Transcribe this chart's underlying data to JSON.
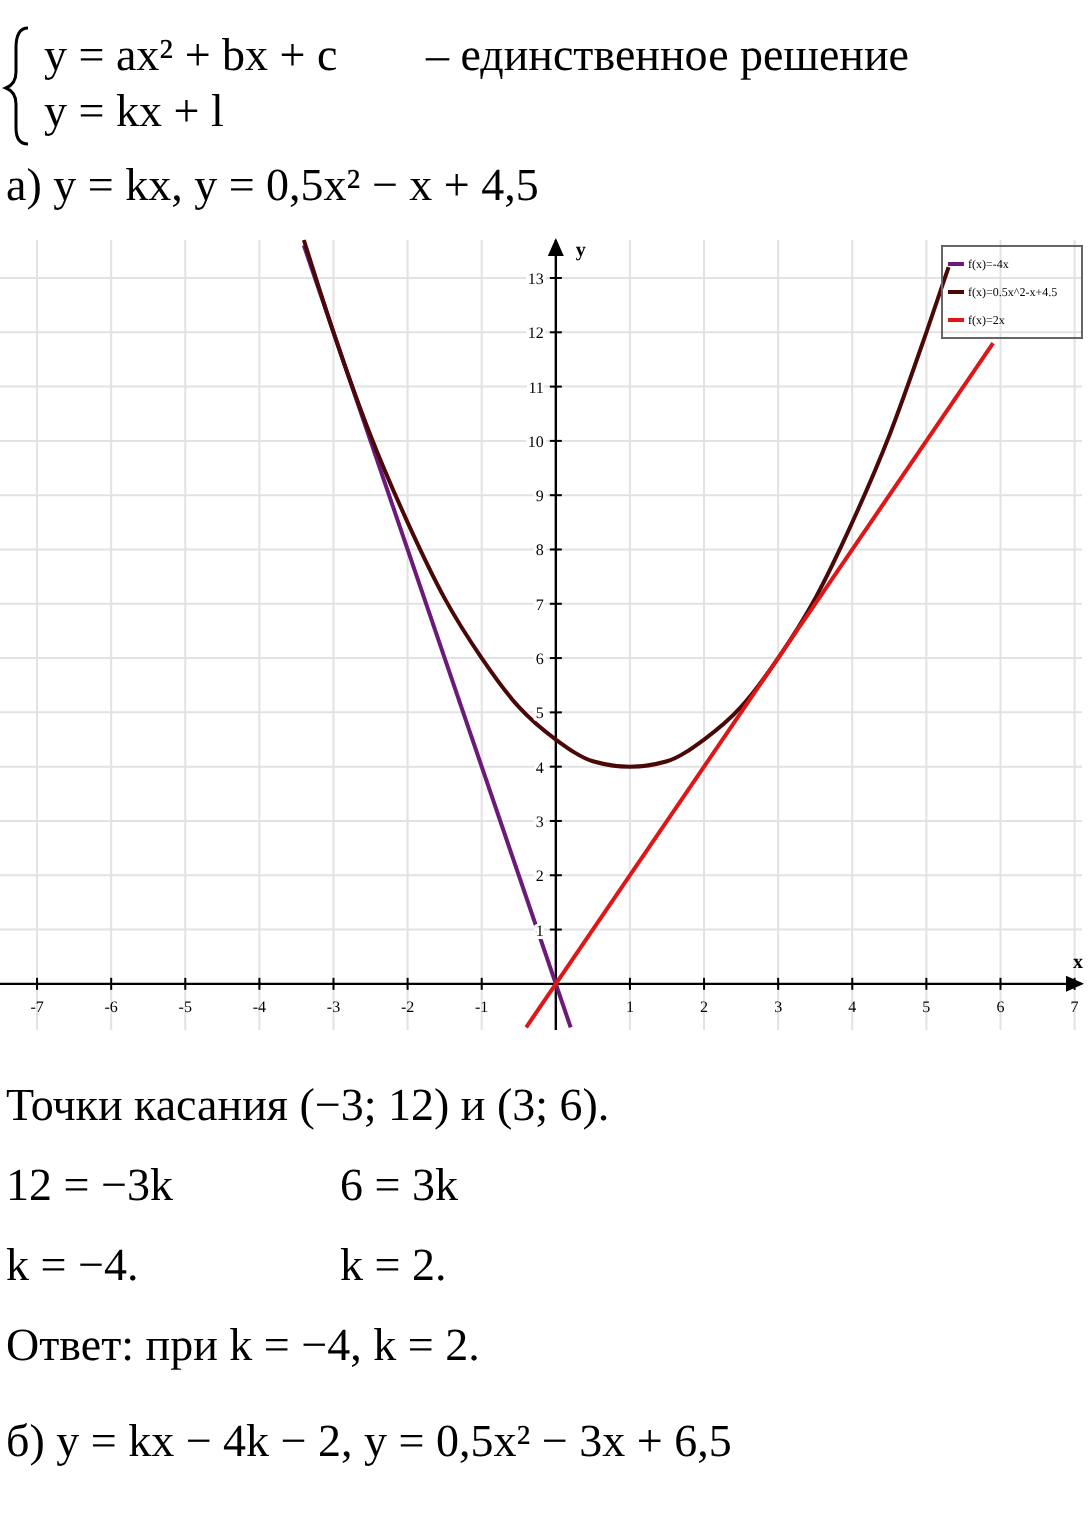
{
  "chart_data": {
    "type": "line",
    "xlabel": "x",
    "ylabel": "y",
    "annotations": [
      "y = ax² + bx + c",
      "y = kx + l",
      "– единственное решение",
      "а) y = kx,      y = 0,5x² − x + 4,5",
      "Точки касания (−3; 12) и (3; 6).",
      "12 = −3k",
      "6 = 3k",
      "k = −4.",
      "k = 2.",
      "Ответ: при k = −4, k = 2.",
      "б) y = kx − 4k − 2,      y = 0,5x² − 3x + 6,5"
    ],
    "xlim": [
      -7.5,
      7.1
    ],
    "ylim": [
      -0.85,
      13.7
    ],
    "xticks": [
      -7,
      -6,
      -5,
      -4,
      -3,
      -2,
      -1,
      1,
      2,
      3,
      4,
      5,
      6,
      7
    ],
    "yticks": [
      1,
      2,
      3,
      4,
      5,
      6,
      7,
      8,
      9,
      10,
      11,
      12,
      13
    ],
    "grid": true,
    "legend": "top right",
    "marker": "none",
    "line_style": "solid",
    "series": [
      {
        "name": "f(x)=-4x",
        "color": "#6b1a7a",
        "x": [
          -3.4,
          0.2
        ],
        "values": [
          13.6,
          -0.8
        ]
      },
      {
        "name": "f(x)=0.5x^2-x+4.5",
        "color": "#4a0808",
        "x": [
          -3.4,
          -3,
          -2.5,
          -2,
          -1.5,
          -1,
          -0.5,
          0,
          0.5,
          1,
          1.5,
          2,
          2.5,
          3,
          3.5,
          4,
          4.5,
          5,
          5.3
        ],
        "values": [
          13.7,
          12,
          10.1,
          8.5,
          7.1,
          6,
          5.1,
          4.5,
          4.1,
          4,
          4.1,
          4.5,
          5.1,
          6,
          7.1,
          8.5,
          10.1,
          12,
          13.2
        ]
      },
      {
        "name": "f(x)=2x",
        "color": "#e01515",
        "x": [
          -0.4,
          5.9
        ],
        "values": [
          -0.8,
          11.8
        ]
      }
    ]
  }
}
